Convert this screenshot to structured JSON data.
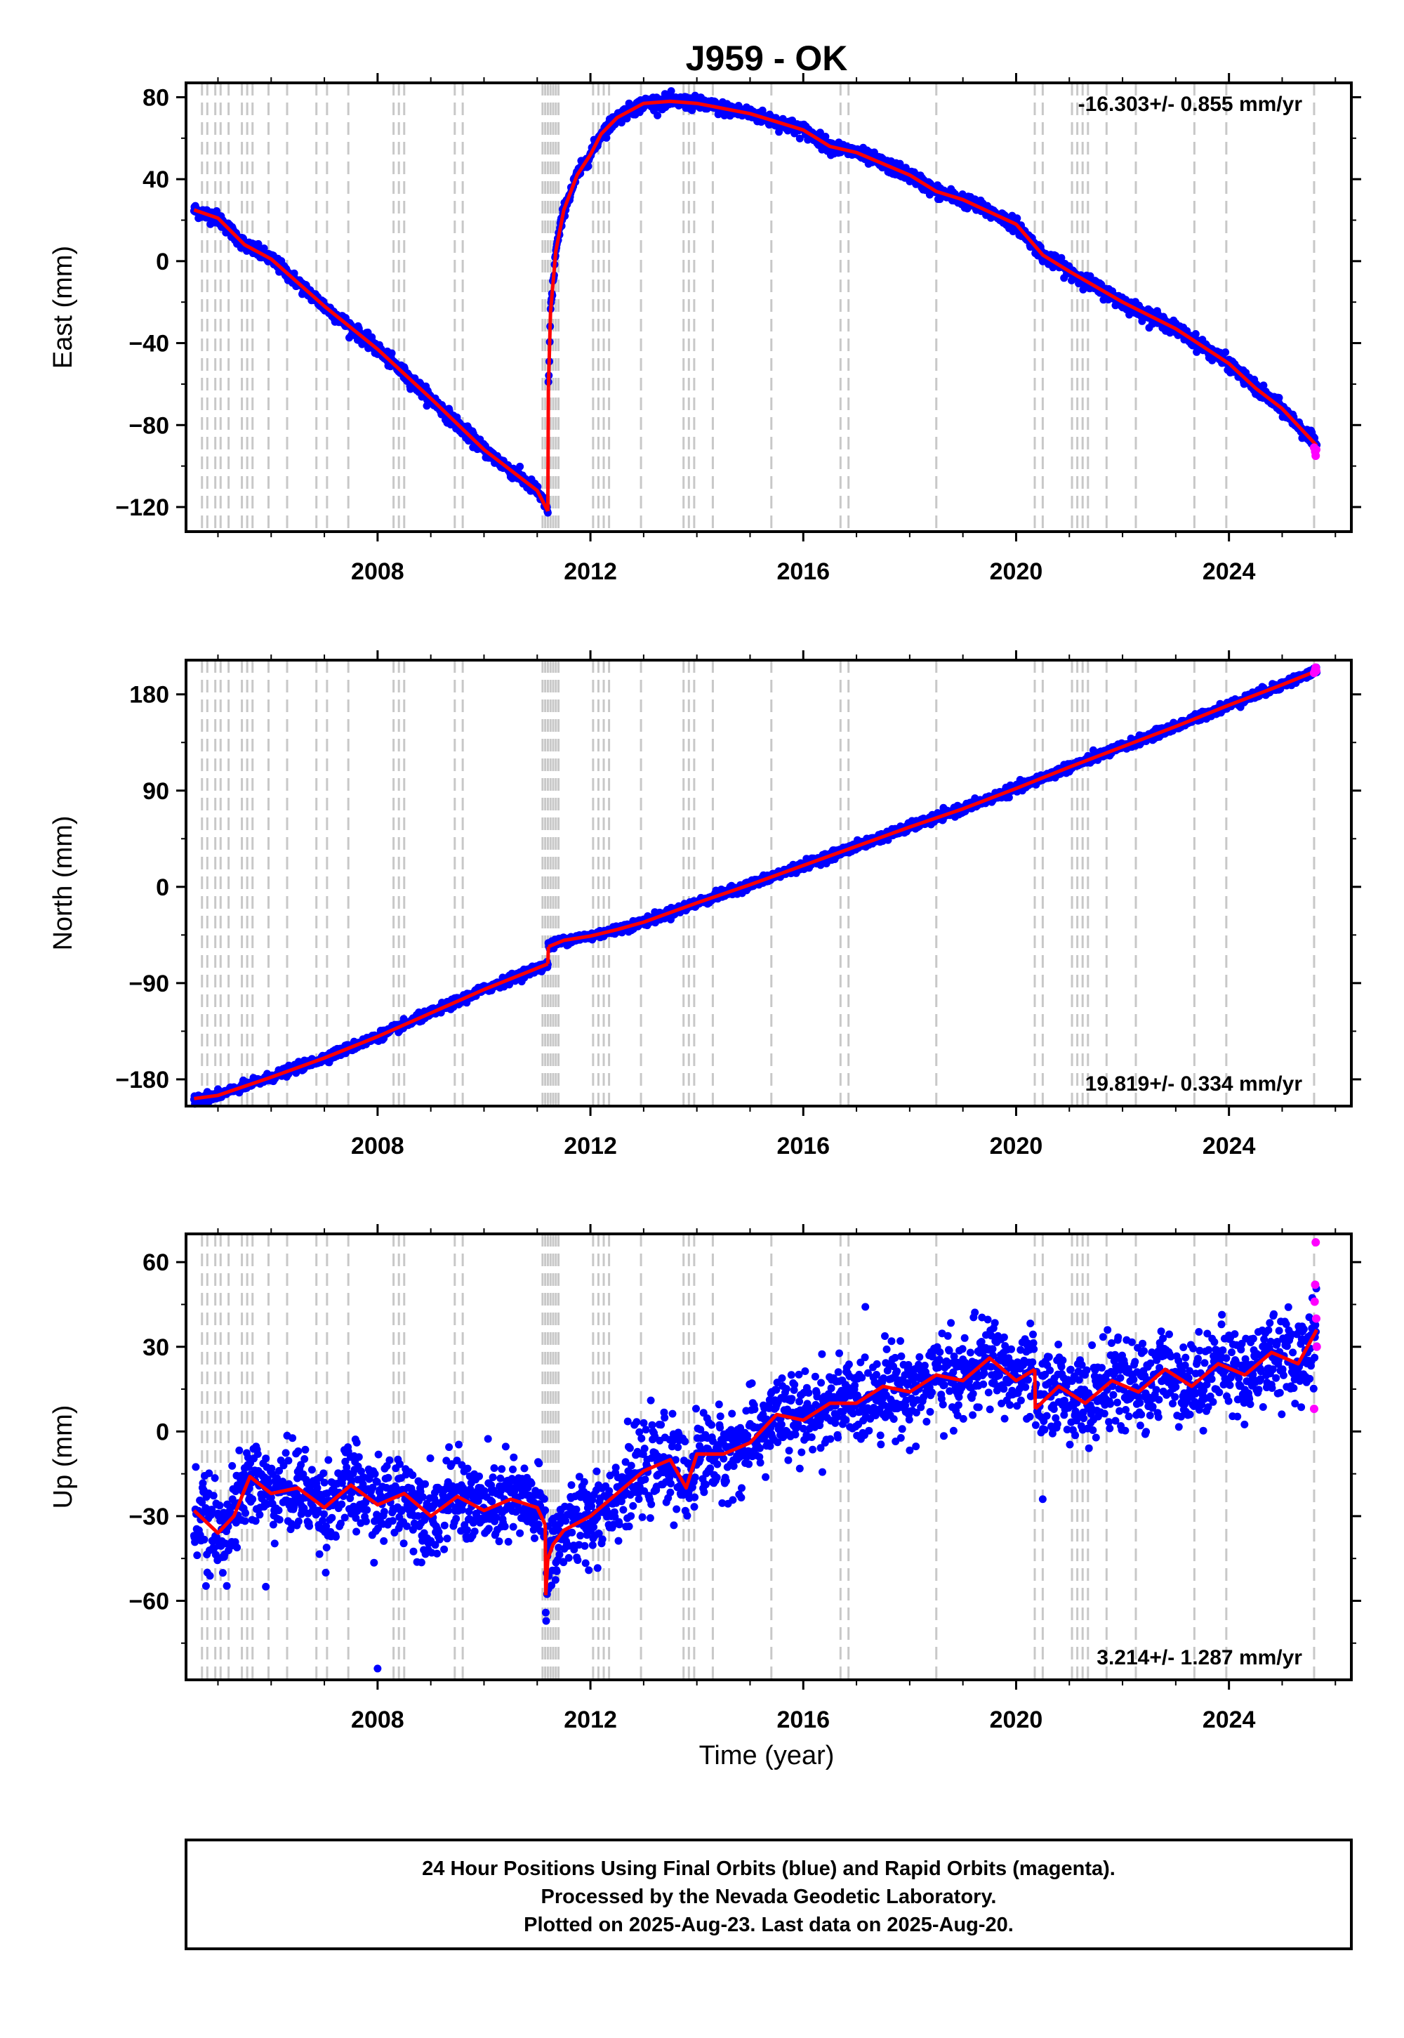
{
  "chart_data": {
    "type": "scatter",
    "title": "J959 - OK",
    "xlabel": "Time (year)",
    "xlim": [
      2004.4,
      2026.3
    ],
    "x_ticks": [
      "2008",
      "2012",
      "2016",
      "2020",
      "2024"
    ],
    "equipment_change_years": [
      2004.7,
      2004.8,
      2004.95,
      2005.05,
      2005.2,
      2005.45,
      2005.55,
      2005.65,
      2005.95,
      2006.3,
      2006.85,
      2007.05,
      2007.45,
      2008.3,
      2008.4,
      2008.5,
      2009.45,
      2009.6,
      2011.1,
      2011.15,
      2011.2,
      2011.25,
      2011.3,
      2011.35,
      2011.4,
      2012.05,
      2012.15,
      2012.25,
      2012.35,
      2012.95,
      2013.75,
      2013.85,
      2013.95,
      2014.3,
      2015.4,
      2016.7,
      2016.85,
      2018.5,
      2020.35,
      2020.5,
      2021.05,
      2021.15,
      2021.25,
      2021.35,
      2021.7,
      2022.25,
      2023.35,
      2023.95,
      2025.6
    ],
    "legend_note": "24 Hour Positions Using Final Orbits (blue) and Rapid Orbits (magenta).",
    "colors": {
      "final_orbits": "#0000ff",
      "rapid_orbits": "#ff00ff",
      "model_fit": "#ff0000",
      "equipment_lines": "#c8c8c8"
    },
    "panels": [
      {
        "ylabel": "East (mm)",
        "ylim": [
          -132,
          87
        ],
        "y_ticks": [
          80,
          40,
          0,
          -40,
          -80,
          -120
        ],
        "rate_text": "-16.303+/- 0.855 mm/yr",
        "rate_position": "top-right",
        "noise": 1.6,
        "series": [
          {
            "name": "model",
            "x": [
              2004.55,
              2005.0,
              2005.5,
              2006.0,
              2007.0,
              2008.0,
              2009.0,
              2010.0,
              2011.0,
              2011.2
            ],
            "y": [
              25,
              21,
              8,
              1,
              -22,
              -43,
              -67,
              -92,
              -112,
              -122
            ]
          },
          {
            "name": "model",
            "x": [
              2011.21,
              2011.25,
              2011.35,
              2011.5,
              2011.75,
              2012.0,
              2012.2,
              2012.5,
              2013.0,
              2013.5,
              2014.0,
              2015.0,
              2016.0,
              2016.5,
              2017.0,
              2018.0,
              2018.5,
              2019.0,
              2020.0,
              2020.5,
              2021.0,
              2022.0,
              2023.0,
              2024.0,
              2024.5,
              2025.0,
              2025.65
            ],
            "y": [
              -62,
              -25,
              5,
              25,
              42,
              52,
              62,
              70,
              77,
              78,
              77,
              72,
              64,
              56,
              53,
              42,
              34,
              30,
              18,
              3,
              -5,
              -20,
              -33,
              -50,
              -62,
              -72,
              -90
            ]
          }
        ],
        "rapid_points": {
          "x": [
            2025.6,
            2025.62,
            2025.63,
            2025.64
          ],
          "y": [
            -91,
            -93,
            -95,
            -92
          ]
        },
        "outliers": {
          "x": [],
          "y": []
        }
      },
      {
        "ylabel": "North (mm)",
        "ylim": [
          -205,
          212
        ],
        "y_ticks": [
          180,
          90,
          0,
          -90,
          -180
        ],
        "rate_text": "19.819+/- 0.334 mm/yr",
        "rate_position": "bottom-right",
        "noise": 2.0,
        "series": [
          {
            "name": "model",
            "x": [
              2004.55,
              2005.0,
              2006.0,
              2007.0,
              2008.0,
              2009.0,
              2010.0,
              2011.0,
              2011.2
            ],
            "y": [
              -198,
              -195,
              -178,
              -160,
              -140,
              -118,
              -96,
              -76,
              -72
            ]
          },
          {
            "name": "model",
            "x": [
              2011.21,
              2011.5,
              2012.0,
              2012.5,
              2013.0,
              2014.0,
              2015.0,
              2016.0,
              2017.0,
              2018.0,
              2019.0,
              2020.0,
              2021.0,
              2022.0,
              2023.0,
              2024.0,
              2025.0,
              2025.65
            ],
            "y": [
              -56,
              -50,
              -46,
              -40,
              -33,
              -15,
              2,
              20,
              38,
              56,
              73,
              92,
              112,
              131,
              150,
              170,
              189,
              202
            ]
          }
        ],
        "rapid_points": {
          "x": [
            2025.6,
            2025.62,
            2025.63,
            2025.64
          ],
          "y": [
            200,
            203,
            205,
            202
          ]
        },
        "outliers": {
          "x": [],
          "y": []
        }
      },
      {
        "ylabel": "Up (mm)",
        "ylim": [
          -88,
          70
        ],
        "y_ticks": [
          60,
          30,
          0,
          -30,
          -60
        ],
        "rate_text": "3.214+/- 1.287 mm/yr",
        "rate_position": "bottom-right",
        "noise": 7.5,
        "series": [
          {
            "name": "model",
            "x": [
              2004.55,
              2005.0,
              2005.3,
              2005.6,
              2006.0,
              2006.5,
              2007.0,
              2007.5,
              2008.0,
              2008.5,
              2009.0,
              2009.5,
              2010.0,
              2010.5,
              2011.0,
              2011.15
            ],
            "y": [
              -28,
              -36,
              -30,
              -16,
              -22,
              -20,
              -27,
              -19,
              -26,
              -22,
              -30,
              -23,
              -28,
              -24,
              -27,
              -33
            ]
          },
          {
            "name": "model",
            "x": [
              2011.16,
              2011.2,
              2011.3,
              2011.5,
              2012.0,
              2012.5,
              2013.0,
              2013.5,
              2013.8,
              2014.0,
              2014.5,
              2015.0,
              2015.5,
              2016.0,
              2016.5,
              2017.0,
              2017.5,
              2018.0,
              2018.5,
              2019.0,
              2019.5,
              2020.0,
              2020.35
            ],
            "y": [
              -58,
              -45,
              -40,
              -35,
              -30,
              -22,
              -14,
              -10,
              -20,
              -8,
              -8,
              -4,
              6,
              4,
              10,
              10,
              16,
              14,
              20,
              18,
              26,
              18,
              22
            ]
          },
          {
            "name": "model",
            "x": [
              2020.36,
              2020.8,
              2021.3,
              2021.8,
              2022.3,
              2022.8,
              2023.3,
              2023.8,
              2024.3,
              2024.8,
              2025.3,
              2025.65
            ],
            "y": [
              8,
              16,
              10,
              18,
              14,
              22,
              16,
              24,
              20,
              28,
              24,
              36
            ]
          }
        ],
        "rapid_points": {
          "x": [
            2025.6,
            2025.61,
            2025.62,
            2025.63,
            2025.64,
            2025.65
          ],
          "y": [
            8,
            46,
            52,
            67,
            40,
            30
          ]
        },
        "outliers": {
          "x": [
            2008.0,
            2020.5,
            2004.8,
            2005.9
          ],
          "y": [
            -84,
            -24,
            -50,
            -55
          ]
        }
      }
    ]
  },
  "footer": {
    "line1": "24 Hour Positions Using Final Orbits (blue) and Rapid Orbits (magenta).",
    "line2": "Processed by the Nevada Geodetic Laboratory.",
    "line3": "Plotted on 2025-Aug-23. Last data on 2025-Aug-20."
  }
}
